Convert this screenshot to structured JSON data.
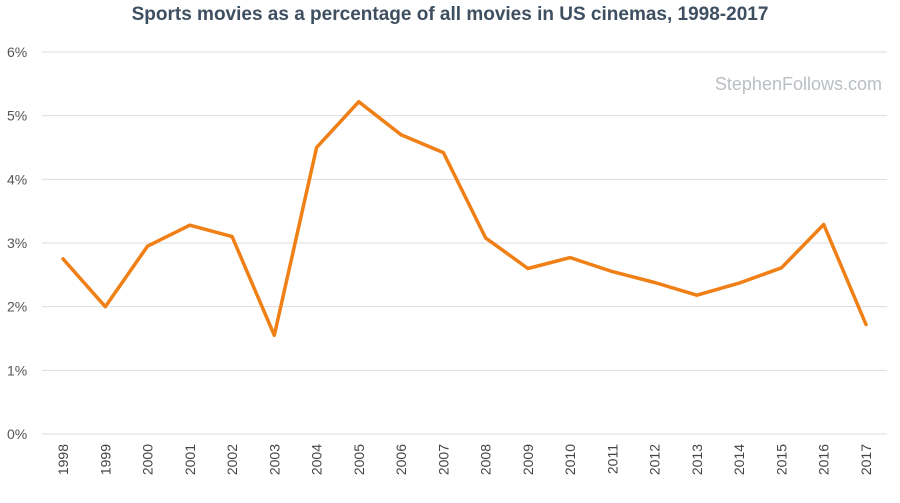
{
  "chart_data": {
    "type": "line",
    "title": "Sports movies as a percentage of all movies in US cinemas, 1998-2017",
    "xlabel": "",
    "ylabel": "",
    "watermark": "StephenFollows.com",
    "categories": [
      "1998",
      "1999",
      "2000",
      "2001",
      "2002",
      "2003",
      "2004",
      "2005",
      "2006",
      "2007",
      "2008",
      "2009",
      "2010",
      "2011",
      "2012",
      "2013",
      "2014",
      "2015",
      "2016",
      "2017"
    ],
    "series": [
      {
        "values": [
          2.75,
          2.0,
          2.95,
          3.28,
          3.1,
          1.55,
          4.5,
          5.22,
          4.7,
          4.42,
          3.08,
          2.6,
          2.77,
          2.55,
          2.38,
          2.18,
          2.37,
          2.61,
          3.29,
          1.72
        ],
        "color": "#f07f16"
      }
    ],
    "ylim": [
      0,
      6
    ],
    "yticks": [
      "0%",
      "1%",
      "2%",
      "3%",
      "4%",
      "5%",
      "6%"
    ],
    "grid": true,
    "legend": "none",
    "colors": {
      "line": "#f07f16",
      "grid": "#dddddd",
      "title": "#3d4f60",
      "watermark": "#b9bec4"
    }
  }
}
